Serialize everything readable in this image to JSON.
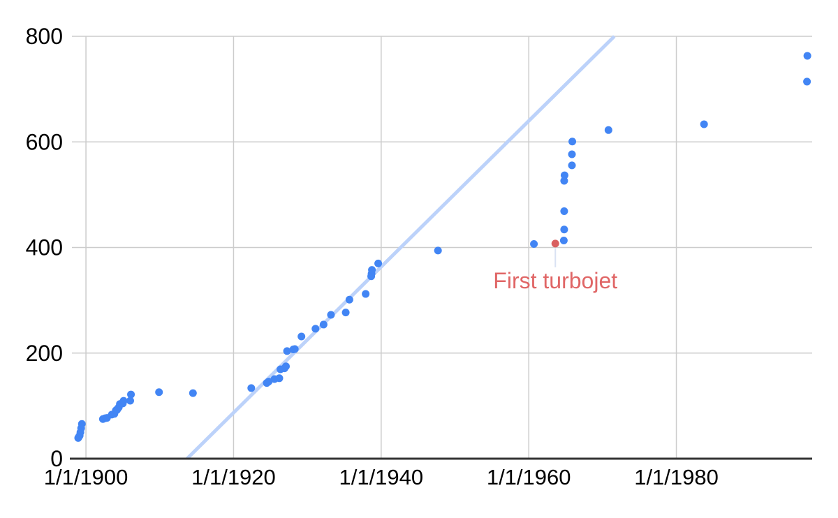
{
  "chart_data": {
    "type": "scatter",
    "title": "",
    "legend": "none",
    "grid": true,
    "x_axis": {
      "kind": "date",
      "range_years": [
        1898.1,
        1998.4
      ],
      "ticks": [
        {
          "year": 1900,
          "label": "1/1/1900"
        },
        {
          "year": 1920,
          "label": "1/1/1920"
        },
        {
          "year": 1940,
          "label": "1/1/1940"
        },
        {
          "year": 1960,
          "label": "1/1/1960"
        },
        {
          "year": 1980,
          "label": "1/1/1980"
        }
      ]
    },
    "y_axis": {
      "range": [
        0,
        800
      ],
      "ticks": [
        {
          "value": 0,
          "label": "0"
        },
        {
          "value": 200,
          "label": "200"
        },
        {
          "value": 400,
          "label": "400"
        },
        {
          "value": 600,
          "label": "600"
        },
        {
          "value": 800,
          "label": "800"
        }
      ]
    },
    "series": [
      {
        "name": "speed-records",
        "color": "#4285f4",
        "point_radius": 5.5,
        "points": [
          [
            1898.95,
            39.24
          ],
          [
            1899.05,
            41.42
          ],
          [
            1899.15,
            43.69
          ],
          [
            1899.25,
            49.92
          ],
          [
            1899.35,
            57.6
          ],
          [
            1899.45,
            65.79
          ],
          [
            1902.3,
            75.06
          ],
          [
            1902.6,
            76.6
          ],
          [
            1902.85,
            77.13
          ],
          [
            1903.5,
            83.47
          ],
          [
            1903.85,
            84.73
          ],
          [
            1904.05,
            91.37
          ],
          [
            1904.2,
            92.3
          ],
          [
            1904.3,
            94.78
          ],
          [
            1904.45,
            97.25
          ],
          [
            1904.6,
            103.55
          ],
          [
            1904.85,
            104.52
          ],
          [
            1905.0,
            104.65
          ],
          [
            1905.1,
            109.65
          ],
          [
            1906.0,
            109.75
          ],
          [
            1906.1,
            121.57
          ],
          [
            1909.9,
            125.95
          ],
          [
            1914.5,
            124.1
          ],
          [
            1922.4,
            133.75
          ],
          [
            1924.5,
            143.31
          ],
          [
            1924.75,
            146.01
          ],
          [
            1925.55,
            150.76
          ],
          [
            1926.2,
            152.33
          ],
          [
            1926.35,
            169.3
          ],
          [
            1926.9,
            171.02
          ],
          [
            1927.1,
            174.88
          ],
          [
            1927.25,
            203.79
          ],
          [
            1928.1,
            206.96
          ],
          [
            1928.3,
            207.55
          ],
          [
            1929.2,
            231.45
          ],
          [
            1931.1,
            246.09
          ],
          [
            1932.2,
            253.97
          ],
          [
            1933.2,
            272.46
          ],
          [
            1935.2,
            276.82
          ],
          [
            1935.7,
            301.13
          ],
          [
            1937.9,
            312.0
          ],
          [
            1938.65,
            345.5
          ],
          [
            1938.7,
            350.2
          ],
          [
            1938.75,
            357.5
          ],
          [
            1939.6,
            369.7
          ],
          [
            1947.7,
            394.19
          ],
          [
            1960.7,
            406.6
          ],
          [
            1964.75,
            413.2
          ],
          [
            1964.8,
            434.02
          ],
          [
            1964.8,
            468.72
          ],
          [
            1964.8,
            526.28
          ],
          [
            1964.85,
            536.71
          ],
          [
            1965.85,
            555.48
          ],
          [
            1965.85,
            576.55
          ],
          [
            1965.9,
            600.6
          ],
          [
            1970.8,
            622.41
          ],
          [
            1983.75,
            633.47
          ],
          [
            1997.7,
            714.14
          ],
          [
            1997.75,
            763.04
          ]
        ]
      },
      {
        "name": "first-turbojet-highlight",
        "color": "#d95f5f",
        "point_radius": 5.5,
        "points": [
          [
            1963.6,
            407.45
          ]
        ]
      }
    ],
    "trendline": {
      "color": "#bcd2fa",
      "width": 5,
      "from": {
        "year": 1913.7,
        "value": 0
      },
      "to": {
        "year": 1971.6,
        "value": 800
      }
    },
    "annotation": {
      "text": "First turbojet",
      "color": "#e06666",
      "anchor_year": 1963.6,
      "anchor_value": 407.45,
      "leader_color": "#d9e2f3"
    }
  },
  "colors": {
    "background": "#ffffff",
    "gridline": "#cccccc",
    "axis_line": "#333333",
    "tick_label": "#000000"
  }
}
